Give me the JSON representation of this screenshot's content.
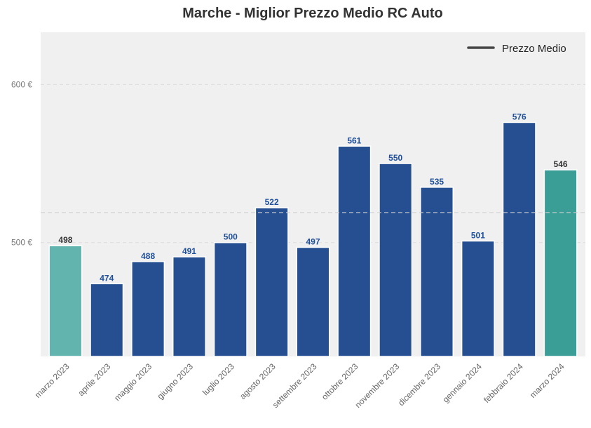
{
  "chart_data": {
    "type": "bar",
    "title": "Marche - Miglior Prezzo Medio RC Auto",
    "xlabel": "",
    "ylabel": "",
    "categories": [
      "marzo 2023",
      "aprile 2023",
      "maggio 2023",
      "giugno 2023",
      "luglio 2023",
      "agosto 2023",
      "settembre 2023",
      "ottobre 2023",
      "novembre 2023",
      "dicembre 2023",
      "gennaio 2024",
      "febbraio 2024",
      "marzo 2024"
    ],
    "values": [
      498,
      474,
      488,
      491,
      500,
      522,
      497,
      561,
      550,
      535,
      501,
      576,
      546
    ],
    "value_labels": [
      "498",
      "474",
      "488",
      "491",
      "500",
      "522",
      "497",
      "561",
      "550",
      "535",
      "501",
      "576",
      "546"
    ],
    "bar_colors": [
      "#62b4ae",
      "#254f90",
      "#254f90",
      "#254f90",
      "#254f90",
      "#254f90",
      "#254f90",
      "#254f90",
      "#254f90",
      "#254f90",
      "#254f90",
      "#254f90",
      "#3a9e96"
    ],
    "label_colors": [
      "#333333",
      "#1f4f9b",
      "#1f4f9b",
      "#1f4f9b",
      "#1f4f9b",
      "#1f4f9b",
      "#1f4f9b",
      "#1f4f9b",
      "#1f4f9b",
      "#1f4f9b",
      "#1f4f9b",
      "#1f4f9b",
      "#333333"
    ],
    "ylim": [
      428,
      633
    ],
    "yticks": [
      500,
      600
    ],
    "ytick_labels": [
      "500 €",
      "600 €"
    ],
    "mean_line": 519,
    "grid": true,
    "legend": {
      "placement": "top-right",
      "entries": [
        {
          "label": "Prezzo Medio",
          "color": "#444444",
          "style": "line"
        }
      ]
    },
    "colors": {
      "plot_background": "#f0f0f0",
      "page_background": "#ffffff",
      "gridline": "#dddddd"
    }
  }
}
